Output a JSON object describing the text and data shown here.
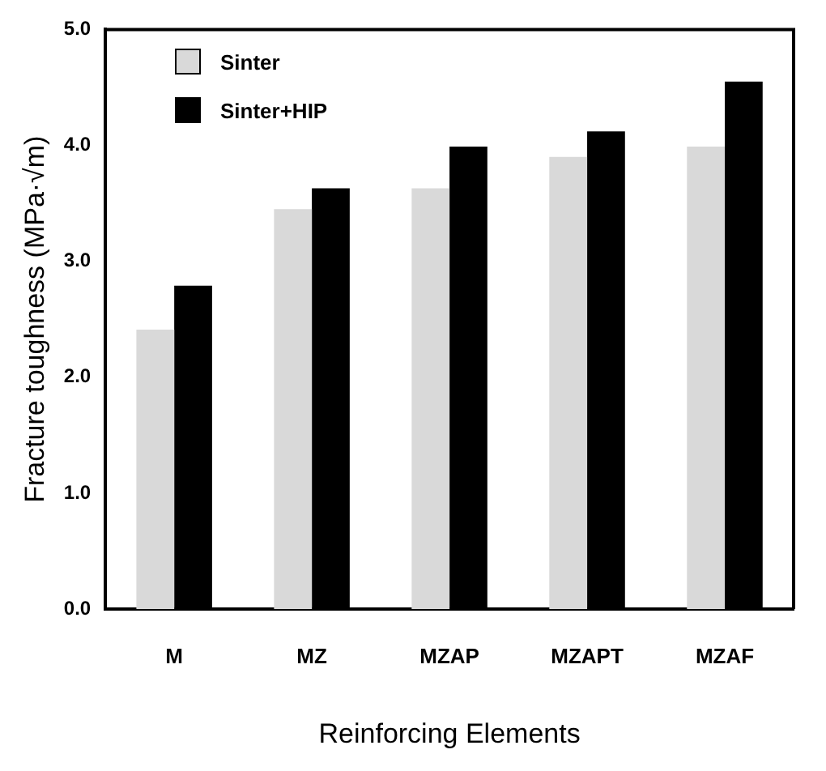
{
  "chart_data": {
    "type": "bar",
    "xlabel": "Reinforcing Elements",
    "ylabel": "Fracture toughness (MPa·√m)",
    "categories": [
      "M",
      "MZ",
      "MZAP",
      "MZAPT",
      "MZAF"
    ],
    "series": [
      {
        "name": "Sinter",
        "color": "#d9d9d9",
        "values": [
          2.41,
          3.45,
          3.63,
          3.9,
          3.99
        ]
      },
      {
        "name": "Sinter+HIP",
        "color": "#000000",
        "values": [
          2.79,
          3.63,
          3.99,
          4.12,
          4.55
        ]
      }
    ],
    "ylim": [
      0,
      5
    ],
    "yticks": [
      {
        "value": 0,
        "label": "0.0"
      },
      {
        "value": 1,
        "label": "1.0"
      },
      {
        "value": 2,
        "label": "2.0"
      },
      {
        "value": 3,
        "label": "3.0"
      },
      {
        "value": 4,
        "label": "4.0"
      },
      {
        "value": 5,
        "label": "5.0"
      }
    ],
    "grid": false,
    "legend": "top left"
  }
}
